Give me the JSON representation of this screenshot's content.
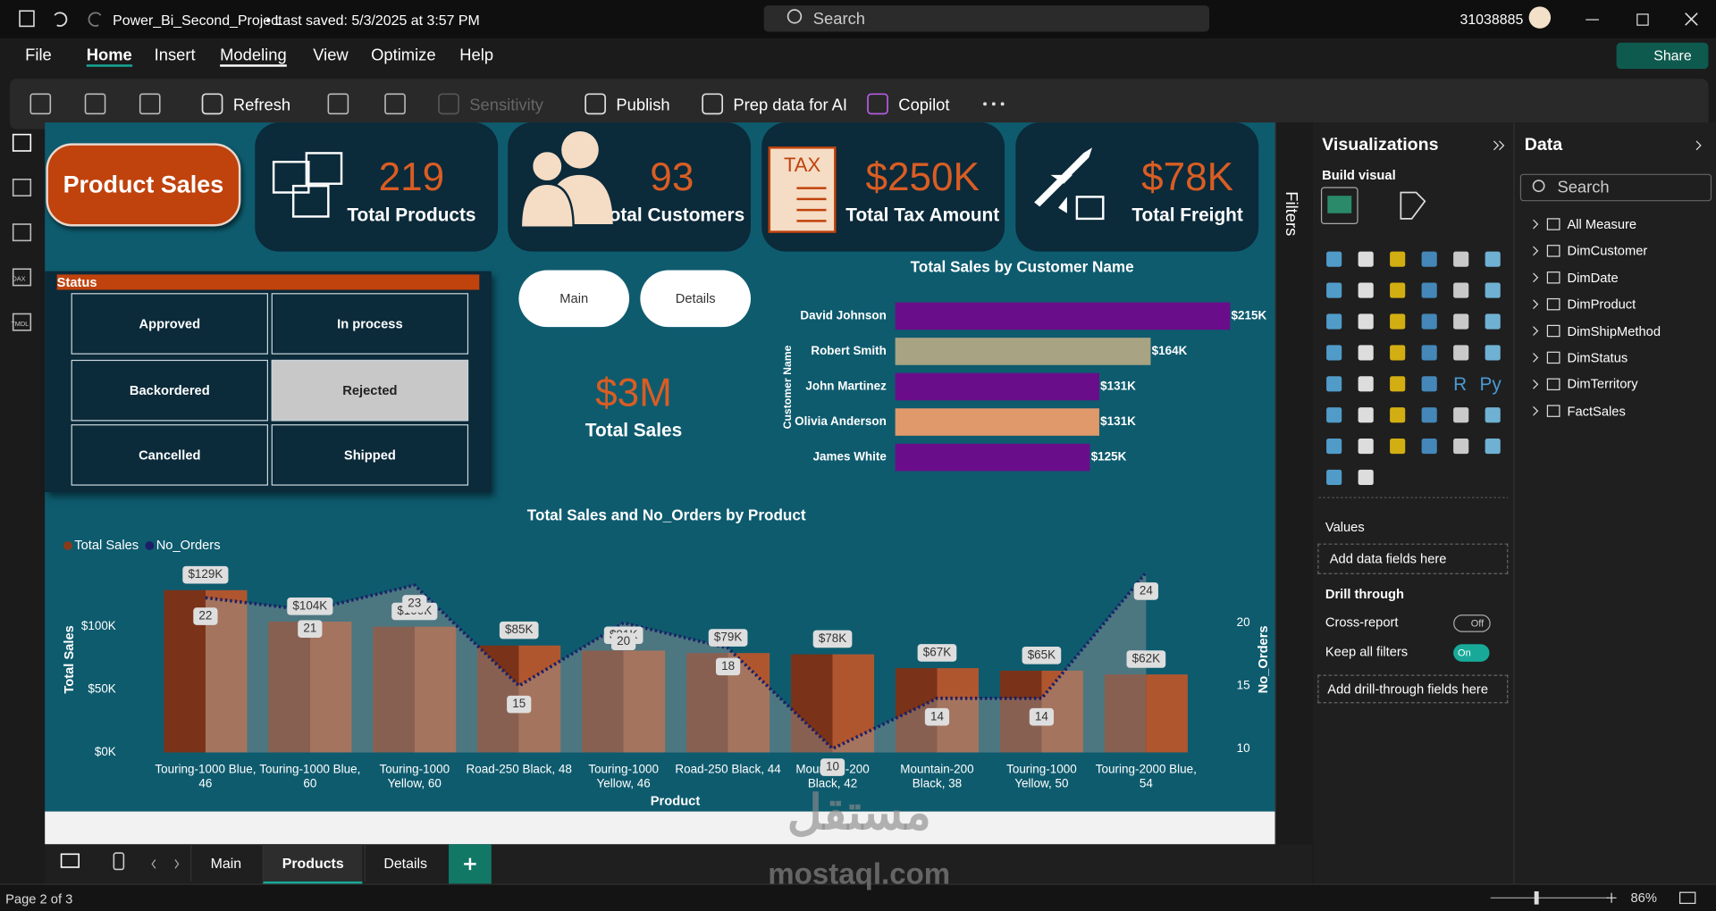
{
  "titlebar": {
    "file": "Power_Bi_Second_Project",
    "saved": "• Last saved: 5/3/2025 at 3:57 PM",
    "search": "Search",
    "user": "31038885"
  },
  "menu": [
    "File",
    "Home",
    "Insert",
    "Modeling",
    "View",
    "Optimize",
    "Help"
  ],
  "share": "Share",
  "ribbon": [
    "Refresh",
    "Sensitivity",
    "Publish",
    "Prep data for AI",
    "Copilot"
  ],
  "rail": [
    "DAX",
    "TMDL"
  ],
  "report": {
    "title": "Product Sales",
    "kpis": [
      {
        "value": "219",
        "label": "Total Products"
      },
      {
        "value": "93",
        "label": "Total Customers"
      },
      {
        "value": "$250K",
        "label": "Total Tax Amount"
      },
      {
        "value": "$78K",
        "label": "Total  Freight"
      }
    ],
    "tax_icon": "TAX",
    "status": {
      "title": "Status",
      "items": [
        "Approved",
        "In process",
        "Backordered",
        "Rejected",
        "Cancelled",
        "Shipped"
      ]
    },
    "buttons": [
      "Main",
      "Details"
    ],
    "total_sales": {
      "value": "$3M",
      "label": "Total Sales"
    },
    "bar_chart": {
      "type": "bar",
      "orientation": "horizontal",
      "title": "Total Sales by Customer Name",
      "y_label": "Customer Name",
      "categories": [
        "David Johnson",
        "Robert Smith",
        "John Martinez",
        "Olivia Anderson",
        "James White"
      ],
      "values": [
        215000,
        164000,
        131000,
        131000,
        125000
      ],
      "value_labels": [
        "$215K",
        "$164K",
        "$131K",
        "$131K",
        "$125K"
      ],
      "colors": [
        "#6a0d8a",
        "#a8a382",
        "#6a0d8a",
        "#e0996a",
        "#6a0d8a"
      ],
      "xlim": [
        0,
        215000
      ]
    },
    "combo_chart": {
      "type": "combo",
      "title": "Total Sales and No_Orders by Product",
      "x_label": "Product",
      "y_label": "Total Sales",
      "y2_label": "No_Orders",
      "legend": "top-left",
      "categories": [
        "Touring-1000 Blue, 46",
        "Touring-1000 Blue, 60",
        "Touring-1000 Yellow, 60",
        "Road-250 Black, 48",
        "Touring-1000 Yellow, 46",
        "Road-250 Black, 44",
        "Mountain-200 Black, 42",
        "Mountain-200 Black, 38",
        "Touring-1000 Yellow, 50",
        "Touring-2000 Blue, 54"
      ],
      "series": [
        {
          "name": "Total Sales",
          "type": "bar",
          "color": "#8a3a1a",
          "values": [
            129000,
            104000,
            100000,
            85000,
            81000,
            79000,
            78000,
            67000,
            65000,
            62000
          ],
          "value_labels": [
            "$129K",
            "$104K",
            "$100K",
            "$85K",
            "$81K",
            "$79K",
            "$78K",
            "$67K",
            "$65K",
            "$62K"
          ]
        },
        {
          "name": "No_Orders",
          "type": "line",
          "axis": "y2",
          "color": "#1c1f66",
          "values": [
            22,
            21,
            23,
            15,
            20,
            18,
            10,
            14,
            14,
            24
          ]
        }
      ],
      "ylim": [
        0,
        150000
      ],
      "yticks": [
        {
          "value": 0,
          "label": "$0K"
        },
        {
          "value": 50000,
          "label": "$50K"
        },
        {
          "value": 100000,
          "label": "$100K"
        }
      ],
      "y2lim": [
        9.7,
        24.7
      ],
      "y2ticks": [
        10,
        15,
        20
      ]
    }
  },
  "filters": "Filters",
  "visualizations": {
    "title": "Visualizations",
    "build": "Build visual",
    "values": "Values",
    "values_box": "Add data fields here",
    "drill": "Drill through",
    "cross": "Cross-report",
    "off": "Off",
    "keep": "Keep all filters",
    "on": "On",
    "drill_box": "Add drill-through fields here",
    "r": "R",
    "py": "Py"
  },
  "data_pane": {
    "title": "Data",
    "search": "Search",
    "items": [
      "All Measure",
      "DimCustomer",
      "DimDate",
      "DimProduct",
      "DimShipMethod",
      "DimStatus",
      "DimTerritory",
      "FactSales"
    ]
  },
  "tabs": [
    "Main",
    "Products",
    "Details"
  ],
  "watermark": {
    "logo": "مستقل",
    "url": "mostaql.com"
  },
  "status_bar": {
    "page": "Page 2 of 3",
    "zoom": "86%"
  }
}
